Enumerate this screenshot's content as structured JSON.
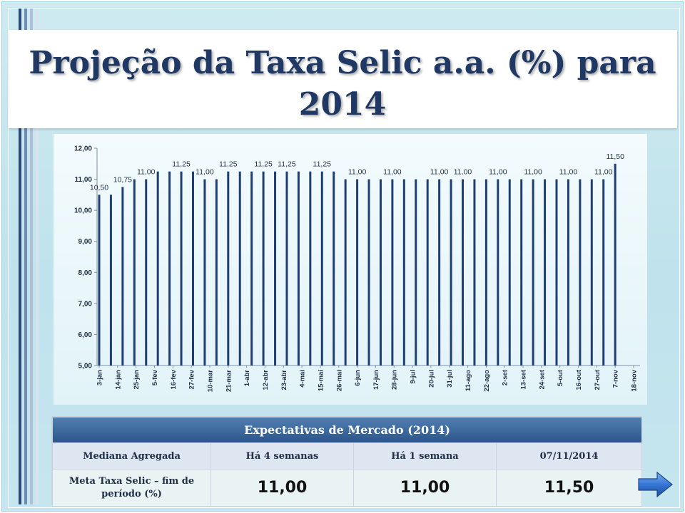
{
  "title": "Projeção da Taxa Selic a.a. (%) para 2014",
  "colors": {
    "bar": "#1f3f74",
    "title": "#1f3864",
    "table_header": "#3a6598",
    "arrow": "#2f6fcf"
  },
  "chart_data": {
    "type": "bar",
    "title": "",
    "xlabel": "",
    "ylabel": "",
    "ylim": [
      5,
      12
    ],
    "yticks": [
      "5,00",
      "6,00",
      "7,00",
      "8,00",
      "9,00",
      "10,00",
      "11,00",
      "12,00"
    ],
    "grid": false,
    "x_tick_labels": [
      "3-jan",
      "14-jan",
      "25-jan",
      "5-fev",
      "16-fev",
      "27-fev",
      "10-mar",
      "21-mar",
      "1-abr",
      "12-abr",
      "23-abr",
      "4-mai",
      "15-mai",
      "26-mai",
      "6-jun",
      "17-jun",
      "28-jun",
      "9-jul",
      "20-jul",
      "31-jul",
      "11-ago",
      "22-ago",
      "2-set",
      "13-set",
      "24-set",
      "5-out",
      "16-out",
      "27-out",
      "7-nov",
      "18-nov"
    ],
    "x_range": [
      "2014-01-03",
      "2014-11-18"
    ],
    "x": [
      "2014-01-03",
      "2014-01-10",
      "2014-01-17",
      "2014-01-24",
      "2014-01-31",
      "2014-02-07",
      "2014-02-14",
      "2014-02-21",
      "2014-02-28",
      "2014-03-07",
      "2014-03-14",
      "2014-03-21",
      "2014-03-28",
      "2014-04-04",
      "2014-04-11",
      "2014-04-18",
      "2014-04-25",
      "2014-05-02",
      "2014-05-09",
      "2014-05-16",
      "2014-05-23",
      "2014-05-30",
      "2014-06-06",
      "2014-06-13",
      "2014-06-20",
      "2014-06-27",
      "2014-07-04",
      "2014-07-11",
      "2014-07-18",
      "2014-07-25",
      "2014-08-01",
      "2014-08-08",
      "2014-08-15",
      "2014-08-22",
      "2014-08-29",
      "2014-09-05",
      "2014-09-12",
      "2014-09-19",
      "2014-09-26",
      "2014-10-03",
      "2014-10-10",
      "2014-10-17",
      "2014-10-24",
      "2014-10-31",
      "2014-11-07"
    ],
    "values": [
      10.5,
      10.5,
      10.75,
      11,
      11,
      11.25,
      11.25,
      11.25,
      11.25,
      11,
      11,
      11.25,
      11.25,
      11.25,
      11.25,
      11.25,
      11.25,
      11.25,
      11.25,
      11.25,
      11.25,
      11,
      11,
      11,
      11,
      11,
      11,
      11,
      11,
      11,
      11,
      11,
      11,
      11,
      11,
      11,
      11,
      11,
      11,
      11,
      11,
      11,
      11,
      11,
      11.5
    ],
    "data_labels": [
      {
        "i": 0,
        "text": "10,50"
      },
      {
        "i": 2,
        "text": "10,75"
      },
      {
        "i": 4,
        "text": "11,00"
      },
      {
        "i": 7,
        "text": "11,25"
      },
      {
        "i": 9,
        "text": "11,00"
      },
      {
        "i": 11,
        "text": "11,25"
      },
      {
        "i": 14,
        "text": "11,25"
      },
      {
        "i": 16,
        "text": "11,25"
      },
      {
        "i": 19,
        "text": "11,25"
      },
      {
        "i": 22,
        "text": "11,00"
      },
      {
        "i": 25,
        "text": "11,00"
      },
      {
        "i": 29,
        "text": "11,00"
      },
      {
        "i": 31,
        "text": "11,00"
      },
      {
        "i": 34,
        "text": "11,00"
      },
      {
        "i": 37,
        "text": "11,00"
      },
      {
        "i": 40,
        "text": "11,00"
      },
      {
        "i": 43,
        "text": "11,00"
      },
      {
        "i": 44,
        "text": "11,50"
      }
    ]
  },
  "table": {
    "title": "Expectativas de Mercado (2014)",
    "headers": [
      "Mediana Agregada",
      "Há 4 semanas",
      "Há 1 semana",
      "07/11/2014"
    ],
    "row_label_line1": "Meta Taxa Selic – fim de",
    "row_label_line2": "período (%)",
    "row_values": [
      "11,00",
      "11,00",
      "11,50"
    ]
  },
  "nav": {
    "next_icon": "right-arrow-icon"
  }
}
